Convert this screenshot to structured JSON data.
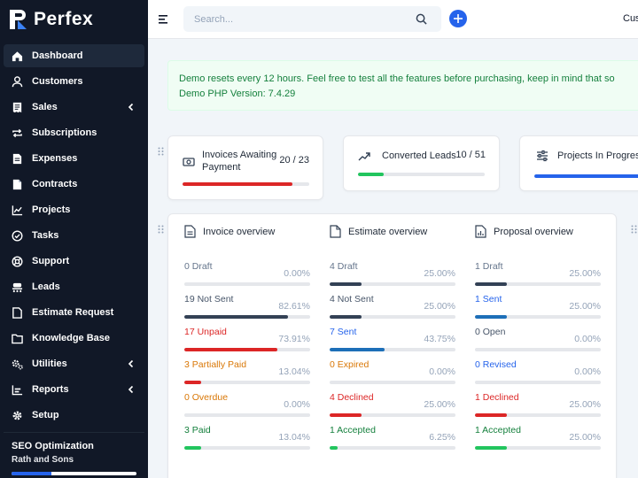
{
  "brand": {
    "name": "Perfex"
  },
  "sidebar": {
    "items": [
      {
        "label": "Dashboard",
        "icon": "home-icon",
        "active": true,
        "chevron": false
      },
      {
        "label": "Customers",
        "icon": "user-icon",
        "chevron": false
      },
      {
        "label": "Sales",
        "icon": "receipt-icon",
        "chevron": true
      },
      {
        "label": "Subscriptions",
        "icon": "repeat-icon",
        "chevron": false
      },
      {
        "label": "Expenses",
        "icon": "file-text-icon",
        "chevron": false
      },
      {
        "label": "Contracts",
        "icon": "file-icon",
        "chevron": false
      },
      {
        "label": "Projects",
        "icon": "chart-icon",
        "chevron": false
      },
      {
        "label": "Tasks",
        "icon": "check-circle-icon",
        "chevron": false
      },
      {
        "label": "Support",
        "icon": "lifebuoy-icon",
        "chevron": false
      },
      {
        "label": "Leads",
        "icon": "leads-icon",
        "chevron": false
      },
      {
        "label": "Estimate Request",
        "icon": "document-icon",
        "chevron": false
      },
      {
        "label": "Knowledge Base",
        "icon": "folder-icon",
        "chevron": false
      },
      {
        "label": "Utilities",
        "icon": "cogs-icon",
        "chevron": true
      },
      {
        "label": "Reports",
        "icon": "bar-chart-icon",
        "chevron": true
      },
      {
        "label": "Setup",
        "icon": "gear-icon",
        "chevron": false
      }
    ],
    "footer": {
      "project": "SEO Optimization",
      "client": "Rath and Sons",
      "progress": 0.32,
      "accent": "#2563eb"
    }
  },
  "topbar": {
    "search_placeholder": "Search...",
    "right_label": "Cus"
  },
  "alert": {
    "line1": "Demo resets every 12 hours. Feel free to test all the features before purchasing, keep in mind that so",
    "line2": "Demo PHP Version: 7.4.29"
  },
  "stats": [
    {
      "label": "Invoices Awaiting Payment",
      "value": "20 / 23",
      "progress": 0.87,
      "color": "#dc2626",
      "icon": "money-icon"
    },
    {
      "label": "Converted Leads",
      "value": "10 / 51",
      "progress": 0.2,
      "color": "#22c55e",
      "icon": "trending-up-icon"
    },
    {
      "label": "Projects In Progress",
      "value": "",
      "progress": 1.0,
      "color": "#2563eb",
      "icon": "sliders-icon"
    }
  ],
  "overview": [
    {
      "title": "Invoice overview",
      "icon": "invoice-doc-icon",
      "rows": [
        {
          "label": "0 Draft",
          "percent": "0.00%",
          "value": 0.0,
          "color": "#64748b",
          "bar": "#334155"
        },
        {
          "label": "19 Not Sent",
          "percent": "82.61%",
          "value": 0.8261,
          "color": "#475569",
          "bar": "#334155"
        },
        {
          "label": "17 Unpaid",
          "percent": "73.91%",
          "value": 0.7391,
          "color": "#dc2626",
          "bar": "#dc2626"
        },
        {
          "label": "3 Partially Paid",
          "percent": "13.04%",
          "value": 0.1304,
          "color": "#d97706",
          "bar": "#dc2626"
        },
        {
          "label": "0 Overdue",
          "percent": "0.00%",
          "value": 0.0,
          "color": "#d97706",
          "bar": "#d97706"
        },
        {
          "label": "3 Paid",
          "percent": "13.04%",
          "value": 0.1304,
          "color": "#15803d",
          "bar": "#22c55e"
        }
      ]
    },
    {
      "title": "Estimate overview",
      "icon": "estimate-doc-icon",
      "rows": [
        {
          "label": "4 Draft",
          "percent": "25.00%",
          "value": 0.25,
          "color": "#64748b",
          "bar": "#334155"
        },
        {
          "label": "4 Not Sent",
          "percent": "25.00%",
          "value": 0.25,
          "color": "#475569",
          "bar": "#334155"
        },
        {
          "label": "7 Sent",
          "percent": "43.75%",
          "value": 0.4375,
          "color": "#2563eb",
          "bar": "#1d6fb8"
        },
        {
          "label": "0 Expired",
          "percent": "0.00%",
          "value": 0.0,
          "color": "#d97706",
          "bar": "#d97706"
        },
        {
          "label": "4 Declined",
          "percent": "25.00%",
          "value": 0.25,
          "color": "#dc2626",
          "bar": "#dc2626"
        },
        {
          "label": "1 Accepted",
          "percent": "6.25%",
          "value": 0.0625,
          "color": "#15803d",
          "bar": "#22c55e"
        }
      ]
    },
    {
      "title": "Proposal overview",
      "icon": "proposal-doc-icon",
      "rows": [
        {
          "label": "1 Draft",
          "percent": "25.00%",
          "value": 0.25,
          "color": "#64748b",
          "bar": "#334155"
        },
        {
          "label": "1 Sent",
          "percent": "25.00%",
          "value": 0.25,
          "color": "#2563eb",
          "bar": "#1d6fb8"
        },
        {
          "label": "0 Open",
          "percent": "0.00%",
          "value": 0.0,
          "color": "#475569",
          "bar": "#334155"
        },
        {
          "label": "0 Revised",
          "percent": "0.00%",
          "value": 0.0,
          "color": "#2563eb",
          "bar": "#1d6fb8"
        },
        {
          "label": "1 Declined",
          "percent": "25.00%",
          "value": 0.25,
          "color": "#dc2626",
          "bar": "#dc2626"
        },
        {
          "label": "1 Accepted",
          "percent": "25.00%",
          "value": 0.25,
          "color": "#15803d",
          "bar": "#22c55e"
        }
      ]
    }
  ]
}
